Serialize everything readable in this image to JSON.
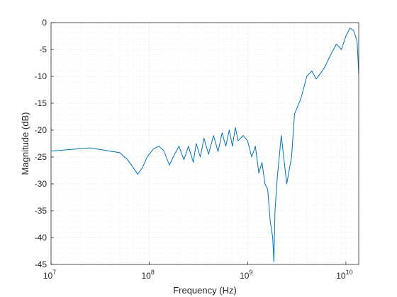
{
  "chart_data": {
    "type": "line",
    "title": "",
    "xlabel": "Frequency (Hz)",
    "ylabel": "Magnitude (dB)",
    "xscale": "log",
    "xlim": [
      10000000,
      13500000000
    ],
    "ylim": [
      -45,
      0
    ],
    "grid": "major and minor, dotted",
    "legend": "none",
    "colors": {
      "line": "#0072BD",
      "axis": "#262626",
      "grid_major": "#cfcfcf",
      "grid_minor": "#e2e2e2"
    },
    "x_ticks": [
      {
        "value": 10000000,
        "base": "10",
        "exp": "7"
      },
      {
        "value": 100000000,
        "base": "10",
        "exp": "8"
      },
      {
        "value": 1000000000,
        "base": "10",
        "exp": "9"
      },
      {
        "value": 10000000000,
        "base": "10",
        "exp": "10"
      }
    ],
    "y_ticks": [
      0,
      -5,
      -10,
      -15,
      -20,
      -25,
      -30,
      -35,
      -40,
      -45
    ],
    "y_tick_labels": [
      "0",
      "-5",
      "-10",
      "-15",
      "-20",
      "-25",
      "-30",
      "-35",
      "-40",
      "-45"
    ],
    "series": [
      {
        "x": [
          10000000,
          25000000,
          50000000,
          60000000,
          70000000,
          76000000,
          85000000,
          95000000,
          110000000,
          125000000,
          140000000,
          160000000,
          175000000,
          200000000,
          225000000,
          250000000,
          280000000,
          300000000,
          330000000,
          360000000,
          400000000,
          450000000,
          500000000,
          550000000,
          600000000,
          650000000,
          700000000,
          750000000,
          800000000,
          900000000,
          1000000000,
          1100000000,
          1200000000,
          1300000000,
          1400000000,
          1500000000,
          1600000000,
          1700000000,
          1800000000,
          1850000000,
          1900000000,
          2000000000,
          2200000000,
          2500000000,
          2800000000,
          3000000000,
          3500000000,
          4000000000,
          4500000000,
          5000000000,
          6000000000,
          7000000000,
          8000000000,
          9000000000,
          10000000000,
          11000000000,
          12000000000,
          13000000000,
          13500000000
        ],
        "y": [
          -23.9,
          -23.3,
          -24.2,
          -25.5,
          -27.2,
          -28.2,
          -27.0,
          -25.0,
          -23.5,
          -23.0,
          -23.8,
          -26.5,
          -25.0,
          -23.0,
          -25.5,
          -23.0,
          -26.0,
          -22.5,
          -25.0,
          -21.5,
          -24.5,
          -21.0,
          -24.0,
          -20.5,
          -23.0,
          -20.0,
          -23.0,
          -19.5,
          -22.0,
          -21.0,
          -22.0,
          -25.0,
          -23.0,
          -28.0,
          -26.0,
          -30.0,
          -31.0,
          -37.0,
          -40.0,
          -44.5,
          -35.0,
          -29.0,
          -21.0,
          -30.0,
          -25.0,
          -17.0,
          -14.0,
          -10.0,
          -9.0,
          -10.5,
          -8.5,
          -6.0,
          -4.0,
          -5.0,
          -2.5,
          -1.0,
          -1.5,
          -3.5,
          -9.5
        ]
      }
    ]
  }
}
